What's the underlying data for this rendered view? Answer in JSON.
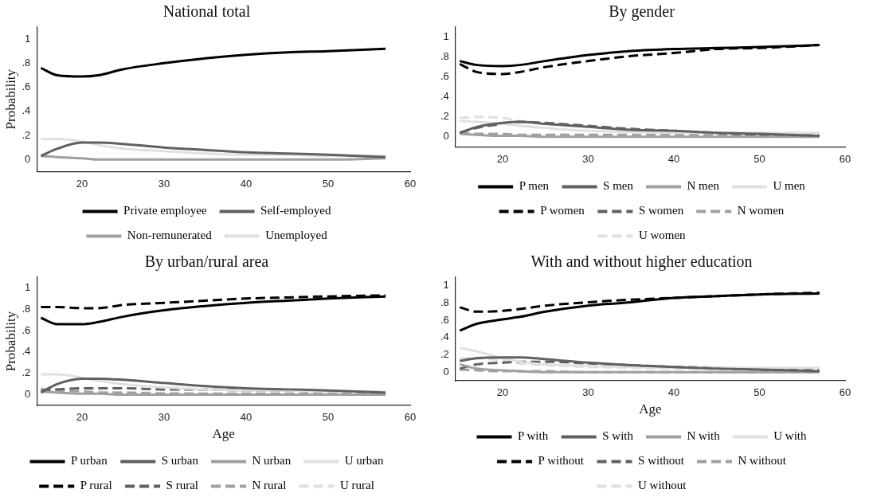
{
  "chart_data": [
    {
      "type": "line",
      "title": "National total",
      "ylabel": "Probability",
      "x": [
        15,
        17,
        20,
        22,
        25,
        30,
        35,
        40,
        45,
        50,
        57
      ],
      "xlim": [
        14.5,
        60
      ],
      "xticks": [
        20,
        30,
        40,
        50,
        60
      ],
      "ylim": [
        -0.1,
        1.1
      ],
      "yticks": [
        {
          "value": 0,
          "label": "0"
        },
        {
          "value": 0.2,
          "label": ".2"
        },
        {
          "value": 0.4,
          "label": ".4"
        },
        {
          "value": 0.6,
          "label": ".6"
        },
        {
          "value": 0.8,
          "label": ".8"
        },
        {
          "value": 1,
          "label": "1"
        }
      ],
      "grid": false,
      "legend": "bottom",
      "marker": "none",
      "series": [
        {
          "name": "Private employee",
          "color": "#000000",
          "line_style": "solid",
          "values": [
            0.76,
            0.7,
            0.69,
            0.7,
            0.75,
            0.8,
            0.84,
            0.87,
            0.89,
            0.9,
            0.92
          ]
        },
        {
          "name": "Self-employed",
          "color": "#606060",
          "line_style": "solid",
          "values": [
            0.03,
            0.09,
            0.14,
            0.14,
            0.13,
            0.1,
            0.08,
            0.06,
            0.05,
            0.04,
            0.02
          ]
        },
        {
          "name": "Non-remunerated",
          "color": "#a0a0a0",
          "line_style": "solid",
          "values": [
            0.03,
            0.02,
            0.01,
            0.0,
            0.0,
            0.0,
            0.0,
            0.0,
            0.0,
            0.0,
            0.01
          ]
        },
        {
          "name": "Unemployed",
          "color": "#e0e0e0",
          "line_style": "solid",
          "values": [
            0.17,
            0.17,
            0.15,
            0.12,
            0.09,
            0.07,
            0.05,
            0.04,
            0.04,
            0.03,
            0.03
          ]
        }
      ]
    },
    {
      "type": "line",
      "title": "By gender",
      "x": [
        15,
        17,
        20,
        22,
        25,
        30,
        35,
        40,
        45,
        50,
        57
      ],
      "xlim": [
        14.5,
        60
      ],
      "xticks": [
        20,
        30,
        40,
        50,
        60
      ],
      "ylim": [
        -0.1,
        1.1
      ],
      "yticks": [
        {
          "value": 0,
          "label": "0"
        },
        {
          "value": 0.2,
          "label": ".2"
        },
        {
          "value": 0.4,
          "label": ".4"
        },
        {
          "value": 0.6,
          "label": ".6"
        },
        {
          "value": 0.8,
          "label": ".8"
        },
        {
          "value": 1,
          "label": "1"
        }
      ],
      "grid": false,
      "legend": "bottom",
      "marker": "none",
      "series": [
        {
          "name": "P men",
          "color": "#000000",
          "line_style": "solid",
          "values": [
            0.76,
            0.72,
            0.71,
            0.72,
            0.76,
            0.82,
            0.86,
            0.88,
            0.89,
            0.9,
            0.92
          ]
        },
        {
          "name": "S men",
          "color": "#606060",
          "line_style": "solid",
          "values": [
            0.04,
            0.1,
            0.14,
            0.15,
            0.13,
            0.1,
            0.07,
            0.06,
            0.04,
            0.03,
            0.01
          ]
        },
        {
          "name": "N men",
          "color": "#a0a0a0",
          "line_style": "solid",
          "values": [
            0.03,
            0.02,
            0.01,
            0.01,
            0.0,
            0.0,
            0.0,
            0.0,
            0.0,
            0.0,
            0.0
          ]
        },
        {
          "name": "U men",
          "color": "#e0e0e0",
          "line_style": "solid",
          "values": [
            0.16,
            0.15,
            0.13,
            0.11,
            0.09,
            0.06,
            0.05,
            0.04,
            0.04,
            0.04,
            0.04
          ]
        },
        {
          "name": "P women",
          "color": "#000000",
          "line_style": "dashed",
          "values": [
            0.73,
            0.65,
            0.63,
            0.65,
            0.7,
            0.76,
            0.81,
            0.84,
            0.88,
            0.89,
            0.92
          ]
        },
        {
          "name": "S women",
          "color": "#606060",
          "line_style": "dashed",
          "values": [
            0.04,
            0.09,
            0.13,
            0.15,
            0.14,
            0.11,
            0.08,
            0.06,
            0.04,
            0.02,
            0.01
          ]
        },
        {
          "name": "N women",
          "color": "#a0a0a0",
          "line_style": "dashed",
          "values": [
            0.04,
            0.03,
            0.03,
            0.02,
            0.02,
            0.02,
            0.02,
            0.02,
            0.02,
            0.02,
            0.02
          ]
        },
        {
          "name": "U women",
          "color": "#e0e0e0",
          "line_style": "dashed",
          "values": [
            0.19,
            0.2,
            0.19,
            0.16,
            0.14,
            0.11,
            0.08,
            0.06,
            0.04,
            0.03,
            0.02
          ]
        }
      ]
    },
    {
      "type": "line",
      "title": "By urban/rural area",
      "xlabel": "Age",
      "ylabel": "Probability",
      "x": [
        15,
        17,
        20,
        22,
        25,
        30,
        35,
        40,
        45,
        50,
        57
      ],
      "xlim": [
        14.5,
        60
      ],
      "xticks": [
        20,
        30,
        40,
        50,
        60
      ],
      "ylim": [
        -0.1,
        1.1
      ],
      "yticks": [
        {
          "value": 0,
          "label": "0"
        },
        {
          "value": 0.2,
          "label": ".2"
        },
        {
          "value": 0.4,
          "label": ".4"
        },
        {
          "value": 0.6,
          "label": ".6"
        },
        {
          "value": 0.8,
          "label": ".8"
        },
        {
          "value": 1,
          "label": "1"
        }
      ],
      "grid": false,
      "legend": "bottom",
      "marker": "none",
      "series": [
        {
          "name": "P urban",
          "color": "#000000",
          "line_style": "solid",
          "values": [
            0.72,
            0.66,
            0.66,
            0.68,
            0.73,
            0.79,
            0.83,
            0.86,
            0.88,
            0.9,
            0.92
          ]
        },
        {
          "name": "S urban",
          "color": "#606060",
          "line_style": "solid",
          "values": [
            0.02,
            0.1,
            0.15,
            0.15,
            0.14,
            0.11,
            0.08,
            0.06,
            0.05,
            0.04,
            0.02
          ]
        },
        {
          "name": "N urban",
          "color": "#a0a0a0",
          "line_style": "solid",
          "values": [
            0.03,
            0.02,
            0.01,
            0.01,
            0.0,
            0.0,
            0.0,
            0.0,
            0.0,
            0.0,
            0.0
          ]
        },
        {
          "name": "U urban",
          "color": "#e0e0e0",
          "line_style": "solid",
          "values": [
            0.19,
            0.19,
            0.16,
            0.13,
            0.1,
            0.07,
            0.05,
            0.04,
            0.04,
            0.03,
            0.03
          ]
        },
        {
          "name": "P rural",
          "color": "#000000",
          "line_style": "dashed",
          "values": [
            0.82,
            0.82,
            0.81,
            0.81,
            0.84,
            0.86,
            0.88,
            0.9,
            0.91,
            0.92,
            0.93
          ]
        },
        {
          "name": "S rural",
          "color": "#606060",
          "line_style": "dashed",
          "values": [
            0.04,
            0.05,
            0.06,
            0.06,
            0.06,
            0.05,
            0.05,
            0.04,
            0.04,
            0.03,
            0.03
          ]
        },
        {
          "name": "N rural",
          "color": "#a0a0a0",
          "line_style": "dashed",
          "values": [
            0.05,
            0.04,
            0.03,
            0.02,
            0.02,
            0.01,
            0.01,
            0.01,
            0.01,
            0.01,
            0.01
          ]
        },
        {
          "name": "U rural",
          "color": "#e0e0e0",
          "line_style": "dashed",
          "values": [
            0.06,
            0.05,
            0.04,
            0.03,
            0.02,
            0.02,
            0.01,
            0.01,
            0.01,
            0.01,
            0.01
          ]
        }
      ]
    },
    {
      "type": "line",
      "title": "With and without higher education",
      "xlabel": "Age",
      "x": [
        15,
        17,
        20,
        22,
        25,
        30,
        35,
        40,
        45,
        50,
        57
      ],
      "xlim": [
        14.5,
        60
      ],
      "xticks": [
        20,
        30,
        40,
        50,
        60
      ],
      "ylim": [
        -0.1,
        1.1
      ],
      "yticks": [
        {
          "value": 0,
          "label": "0"
        },
        {
          "value": 0.2,
          "label": ".2"
        },
        {
          "value": 0.4,
          "label": ".4"
        },
        {
          "value": 0.6,
          "label": ".6"
        },
        {
          "value": 0.8,
          "label": ".8"
        },
        {
          "value": 1,
          "label": "1"
        }
      ],
      "grid": false,
      "legend": "bottom",
      "marker": "none",
      "series": [
        {
          "name": "P with",
          "color": "#000000",
          "line_style": "solid",
          "values": [
            0.48,
            0.56,
            0.61,
            0.64,
            0.7,
            0.77,
            0.81,
            0.86,
            0.88,
            0.9,
            0.91
          ]
        },
        {
          "name": "S with",
          "color": "#606060",
          "line_style": "solid",
          "values": [
            0.13,
            0.16,
            0.17,
            0.17,
            0.15,
            0.11,
            0.08,
            0.06,
            0.04,
            0.03,
            0.01
          ]
        },
        {
          "name": "N with",
          "color": "#a0a0a0",
          "line_style": "solid",
          "values": [
            0.09,
            0.04,
            0.02,
            0.01,
            0.0,
            0.0,
            0.0,
            0.0,
            0.0,
            0.0,
            0.0
          ]
        },
        {
          "name": "U with",
          "color": "#e0e0e0",
          "line_style": "solid",
          "values": [
            0.28,
            0.24,
            0.16,
            0.12,
            0.09,
            0.07,
            0.06,
            0.05,
            0.05,
            0.05,
            0.05
          ]
        },
        {
          "name": "P without",
          "color": "#000000",
          "line_style": "dashed",
          "values": [
            0.75,
            0.7,
            0.71,
            0.73,
            0.77,
            0.81,
            0.84,
            0.86,
            0.88,
            0.9,
            0.92
          ]
        },
        {
          "name": "S without",
          "color": "#606060",
          "line_style": "dashed",
          "values": [
            0.04,
            0.09,
            0.11,
            0.12,
            0.12,
            0.1,
            0.08,
            0.06,
            0.05,
            0.03,
            0.02
          ]
        },
        {
          "name": "N without",
          "color": "#a0a0a0",
          "line_style": "dashed",
          "values": [
            0.03,
            0.02,
            0.01,
            0.01,
            0.01,
            0.0,
            0.0,
            0.0,
            0.0,
            0.0,
            0.0
          ]
        },
        {
          "name": "U without",
          "color": "#e0e0e0",
          "line_style": "dashed",
          "values": [
            0.16,
            0.16,
            0.13,
            0.1,
            0.08,
            0.06,
            0.05,
            0.04,
            0.04,
            0.03,
            0.03
          ]
        }
      ]
    }
  ]
}
